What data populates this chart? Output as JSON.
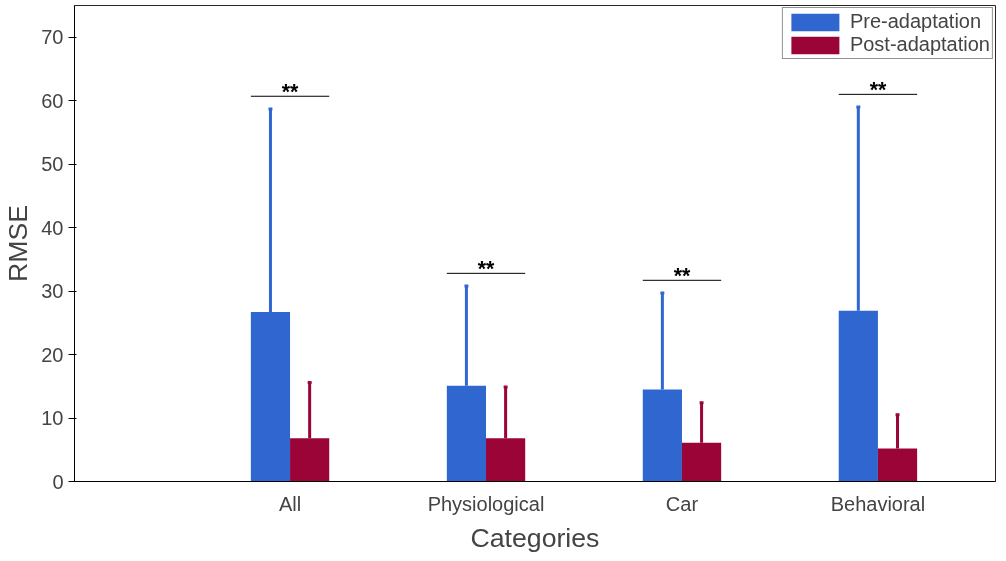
{
  "chart_data": {
    "type": "bar",
    "xlabel": "Categories",
    "ylabel": "RMSE",
    "categories": [
      null,
      "All",
      "Physiological",
      "Car",
      "Behavioral"
    ],
    "series": [
      {
        "name": "Pre-adaptation",
        "color": "#3066d0",
        "values": [
          null,
          26.7,
          15.1,
          14.5,
          26.9
        ],
        "errors": [
          null,
          [
            26.7,
            58.7
          ],
          [
            15.1,
            30.8
          ],
          [
            14.5,
            29.7
          ],
          [
            26.9,
            59.0
          ]
        ]
      },
      {
        "name": "Post-adaptation",
        "color": "#9b0436",
        "values": [
          null,
          6.8,
          6.8,
          6.1,
          5.2
        ],
        "errors": [
          null,
          [
            6.8,
            15.6
          ],
          [
            6.8,
            14.9
          ],
          [
            6.1,
            12.4
          ],
          [
            5.2,
            10.5
          ]
        ]
      }
    ],
    "annotations": [
      "**",
      "**",
      "**",
      "**"
    ],
    "ylim": [
      0,
      75
    ],
    "yticks": [
      0,
      10,
      20,
      30,
      40,
      50,
      60,
      70
    ],
    "grid": false,
    "legend": "top right"
  }
}
